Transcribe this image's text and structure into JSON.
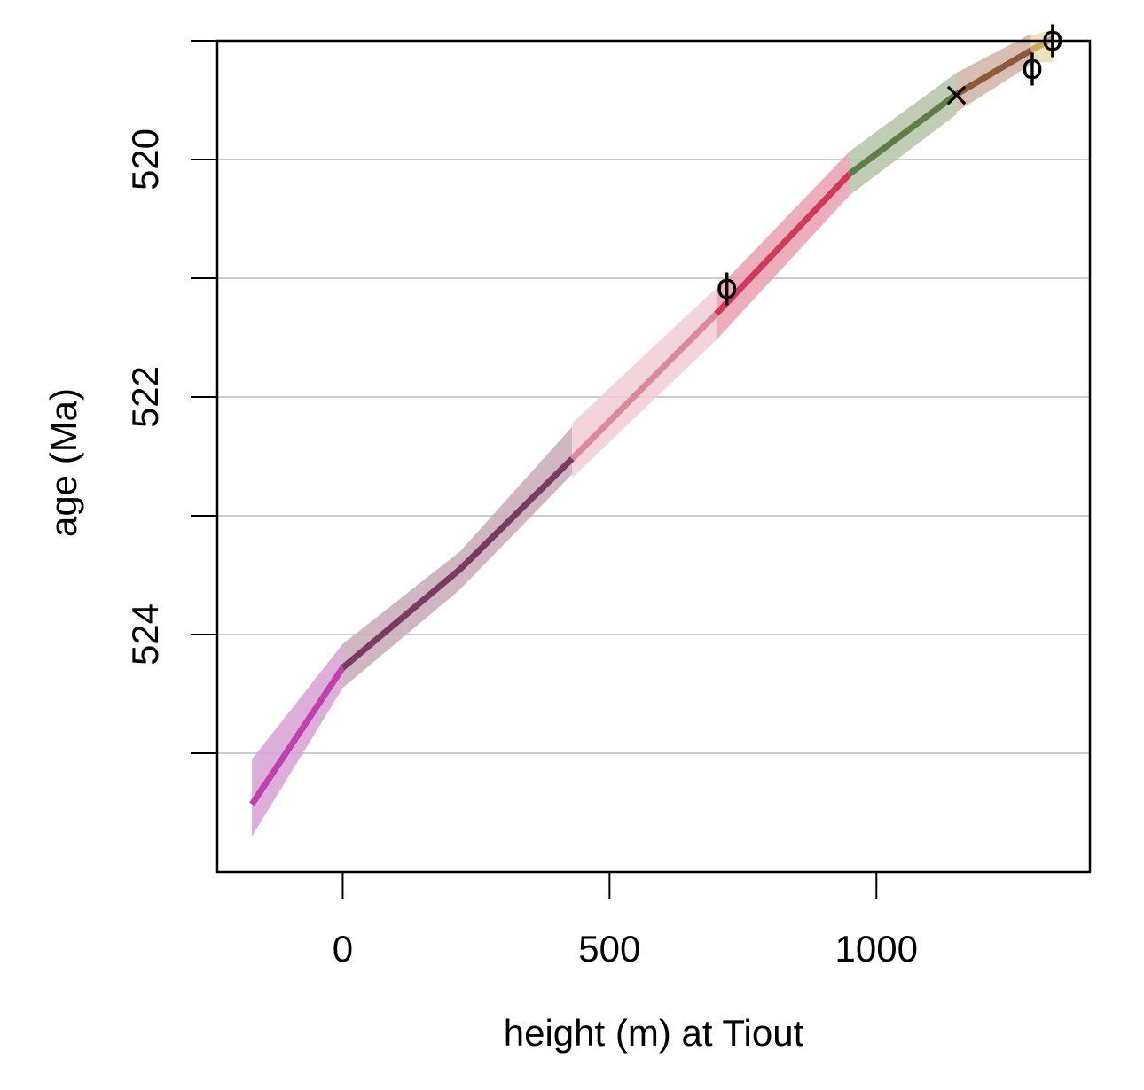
{
  "chart_data": {
    "type": "line",
    "title": "",
    "xlabel": "height (m) at Tiout",
    "ylabel": "age (Ma)",
    "xlim": [
      -235,
      1400
    ],
    "ylim": [
      526,
      519
    ],
    "y_reversed": true,
    "x_ticks": [
      0,
      500,
      1000
    ],
    "y_ticks": [
      519,
      520,
      521,
      522,
      523,
      524,
      525
    ],
    "y_tick_labels": [
      "",
      "520",
      "",
      "522",
      "",
      "524",
      ""
    ],
    "grid": "horizontal",
    "legend": "none",
    "series": [
      {
        "color": "#c040b0",
        "band_color": "#d7a0d2",
        "points": [
          {
            "x": -170,
            "y": 525.43,
            "lo": 525.05,
            "hi": 525.7
          },
          {
            "x": 0,
            "y": 524.28,
            "lo": 524.08,
            "hi": 524.45
          }
        ]
      },
      {
        "color": "#7a3a62",
        "band_color": "#c8a8b8",
        "points": [
          {
            "x": 0,
            "y": 524.28,
            "lo": 524.08,
            "hi": 524.45
          },
          {
            "x": 220,
            "y": 523.45,
            "lo": 523.3,
            "hi": 523.62
          },
          {
            "x": 430,
            "y": 522.52,
            "lo": 522.25,
            "hi": 522.65
          }
        ]
      },
      {
        "color": "#da8a9a",
        "band_color": "#f0ccd4",
        "points": [
          {
            "x": 430,
            "y": 522.52,
            "lo": 522.22,
            "hi": 522.68
          },
          {
            "x": 700,
            "y": 521.3,
            "lo": 521.08,
            "hi": 521.52
          }
        ]
      },
      {
        "color": "#d03a58",
        "band_color": "#eaa0b0",
        "points": [
          {
            "x": 700,
            "y": 521.3,
            "lo": 521.1,
            "hi": 521.52
          },
          {
            "x": 950,
            "y": 520.12,
            "lo": 519.93,
            "hi": 520.3
          }
        ]
      },
      {
        "color": "#5e7d48",
        "band_color": "#b4c4a8",
        "points": [
          {
            "x": 950,
            "y": 520.12,
            "lo": 519.93,
            "hi": 520.3
          },
          {
            "x": 1150,
            "y": 519.45,
            "lo": 519.27,
            "hi": 519.62
          }
        ]
      },
      {
        "color": "#8c5a3a",
        "band_color": "#d0b2a4",
        "points": [
          {
            "x": 1150,
            "y": 519.45,
            "lo": 519.27,
            "hi": 519.6
          },
          {
            "x": 1290,
            "y": 519.08,
            "lo": 518.94,
            "hi": 519.2
          }
        ]
      },
      {
        "color": "#c8aa60",
        "band_color": "#ecdcb0",
        "points": [
          {
            "x": 1290,
            "y": 519.08,
            "lo": 518.96,
            "hi": 519.18
          },
          {
            "x": 1330,
            "y": 518.98,
            "lo": 518.9,
            "hi": 519.18
          }
        ]
      }
    ],
    "markers": [
      {
        "symbol": "ϕ",
        "x": 720,
        "y": 521.07
      },
      {
        "symbol": "×",
        "x": 1150,
        "y": 519.45
      },
      {
        "symbol": "ϕ",
        "x": 1292,
        "y": 519.22
      },
      {
        "symbol": "ϕ",
        "x": 1330,
        "y": 518.98
      }
    ]
  }
}
